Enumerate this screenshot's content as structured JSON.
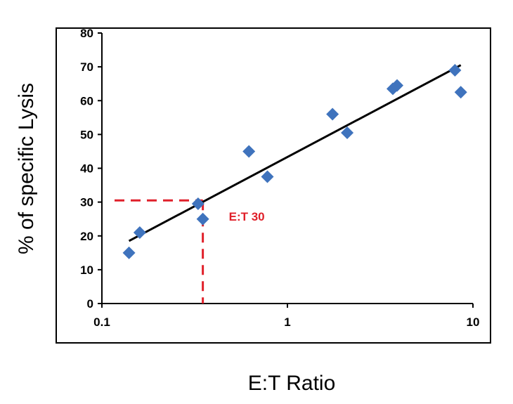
{
  "chart_data": {
    "type": "scatter",
    "title": "",
    "xlabel": "E:T Ratio",
    "ylabel": "% of specific Lysis",
    "x_scale": "log",
    "xlim": [
      0.1,
      10
    ],
    "ylim": [
      0,
      80
    ],
    "x_ticks": [
      0.1,
      1,
      10
    ],
    "x_tick_labels": [
      "0.1",
      "1",
      "10"
    ],
    "y_ticks": [
      0,
      10,
      20,
      30,
      40,
      50,
      60,
      70,
      80
    ],
    "y_tick_labels": [
      "0",
      "10",
      "20",
      "30",
      "40",
      "50",
      "60",
      "70",
      "80"
    ],
    "grid": false,
    "legend": "none",
    "series": [
      {
        "marker": "diamond",
        "color": "#3F73BD",
        "points": [
          {
            "x": 0.14,
            "y": 15
          },
          {
            "x": 0.16,
            "y": 21
          },
          {
            "x": 0.33,
            "y": 29.5
          },
          {
            "x": 0.35,
            "y": 25
          },
          {
            "x": 0.62,
            "y": 45
          },
          {
            "x": 0.78,
            "y": 37.5
          },
          {
            "x": 1.75,
            "y": 56
          },
          {
            "x": 2.1,
            "y": 50.5
          },
          {
            "x": 3.7,
            "y": 63.5
          },
          {
            "x": 3.9,
            "y": 64.5
          },
          {
            "x": 8.0,
            "y": 69
          },
          {
            "x": 8.6,
            "y": 62.5
          }
        ]
      }
    ],
    "trendline": {
      "color": "#000000",
      "from": {
        "x": 0.14,
        "y": 18.5
      },
      "to": {
        "x": 8.6,
        "y": 70.5
      }
    },
    "annotation": {
      "text": "E:T 30",
      "color": "#E0202A",
      "point": {
        "x": 0.35,
        "y": 30.5
      }
    }
  }
}
